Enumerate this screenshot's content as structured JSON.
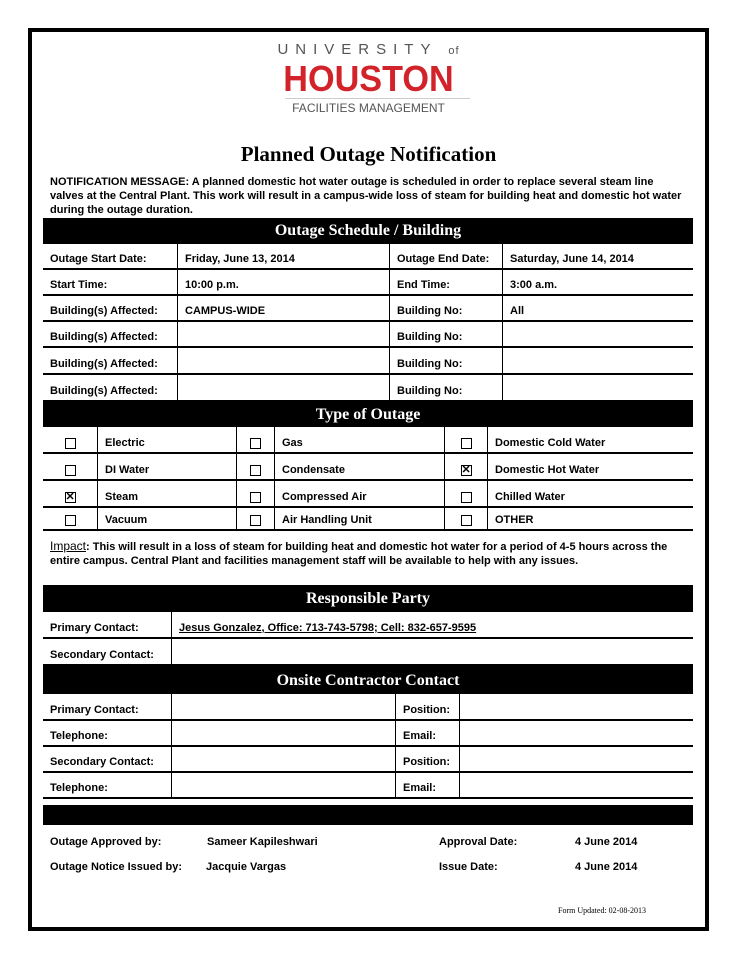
{
  "logo": {
    "line1": "UNIVERSITY",
    "of": "of",
    "line2": "HOUSTON",
    "line3": "FACILITIES MANAGEMENT",
    "color": "#d2232a"
  },
  "title": "Planned Outage Notification",
  "notification": "NOTIFICATION MESSAGE:  A planned domestic hot water outage is scheduled in order to replace several steam line valves at the Central Plant.  This work will result in a campus-wide loss of steam for building heat and domestic hot water during the outage duration.",
  "schedule": {
    "header": "Outage Schedule / Building",
    "rows": [
      [
        "Outage Start Date:",
        "Friday, June 13, 2014",
        "Outage End Date:",
        "Saturday, June 14, 2014"
      ],
      [
        "Start Time:",
        "10:00 p.m.",
        "End Time:",
        "3:00 a.m."
      ],
      [
        "Building(s) Affected:",
        "CAMPUS-WIDE",
        "Building No:",
        "All"
      ],
      [
        "Building(s) Affected:",
        "",
        "Building No:",
        ""
      ],
      [
        "Building(s) Affected:",
        "",
        "Building No:",
        ""
      ],
      [
        "Building(s) Affected:",
        "",
        "Building No:",
        ""
      ]
    ]
  },
  "type_of_outage": {
    "header": "Type of Outage",
    "rows": [
      [
        {
          "label": "Electric",
          "checked": false
        },
        {
          "label": "Gas",
          "checked": false
        },
        {
          "label": "Domestic Cold Water",
          "checked": false
        }
      ],
      [
        {
          "label": "DI Water",
          "checked": false
        },
        {
          "label": "Condensate",
          "checked": false
        },
        {
          "label": "Domestic Hot Water",
          "checked": true
        }
      ],
      [
        {
          "label": "Steam",
          "checked": true
        },
        {
          "label": "Compressed Air",
          "checked": false
        },
        {
          "label": "Chilled Water",
          "checked": false
        }
      ],
      [
        {
          "label": "Vacuum",
          "checked": false
        },
        {
          "label": "Air Handling Unit",
          "checked": false
        },
        {
          "label": "OTHER",
          "checked": false
        }
      ]
    ]
  },
  "impact": {
    "label": "Impact",
    "text": ": This will result in a loss of steam for building heat and domestic hot water for a period of 4-5 hours across the entire campus.  Central Plant and facilities management staff will be available to help with any issues."
  },
  "responsible": {
    "header": "Responsible Party",
    "rows": [
      [
        "Primary Contact:",
        "Jesus Gonzalez, Office: 713-743-5798; Cell:  832-657-9595"
      ],
      [
        "Secondary Contact:",
        ""
      ]
    ]
  },
  "contractor": {
    "header": "Onsite Contractor Contact",
    "rows": [
      [
        "Primary Contact:",
        "",
        "Position:",
        ""
      ],
      [
        "Telephone:",
        "",
        "Email:",
        ""
      ],
      [
        "Secondary Contact:",
        "",
        "Position:",
        ""
      ],
      [
        "Telephone:",
        "",
        "Email:",
        ""
      ]
    ]
  },
  "approval": {
    "approved_label": "Outage Approved by:",
    "approved_by": "Sameer Kapileshwari",
    "approval_date_label": "Approval Date:",
    "approval_date": "4 June 2014",
    "issued_label": "Outage Notice Issued by:",
    "issued_by": "Jacquie Vargas",
    "issue_date_label": "Issue Date:",
    "issue_date": "4 June 2014"
  },
  "form_updated": "Form Updated: 02-08-2013"
}
